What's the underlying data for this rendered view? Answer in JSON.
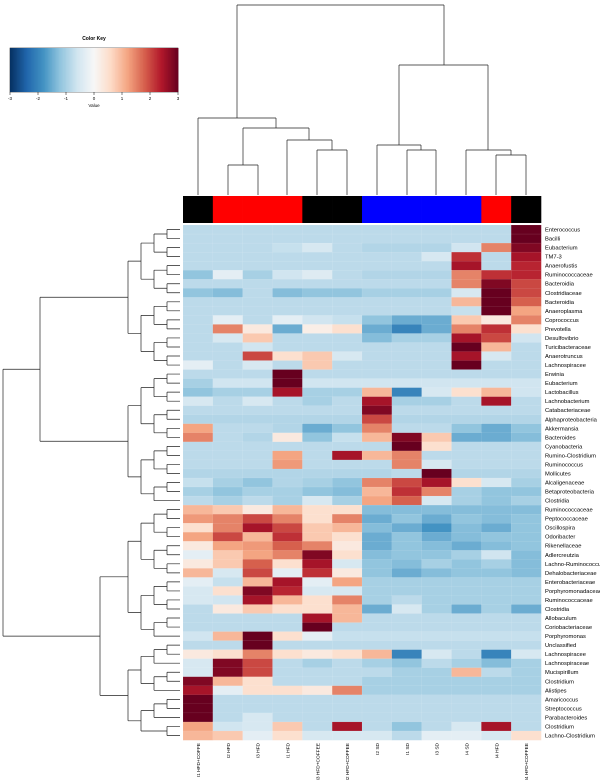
{
  "chart_data": {
    "type": "heatmap",
    "rows": [
      "Enterococcus",
      "Bacilli",
      "Eubacterium",
      "TM7-3",
      "Anaerofustis",
      "Ruminococcaceae",
      "Bacteroidia",
      "Clostridiaceae",
      "Bacteroidia",
      "Anaeroplasma",
      "Coprococcus",
      "Prevotella",
      "Desulfovibrio",
      "Turicibacteraceae",
      "Anaerotruncus",
      "Lachnospiracee",
      "Erwinia",
      "Eubacterium",
      "Lactobacillus",
      "Lachnobacterium",
      "Catabacteriaceae",
      "Alphaproteobacteria",
      "Akkermansia",
      "Bacteroides",
      "Cyanobacteria",
      "Rumino-Clostridium",
      "Ruminococcus",
      "Mollicutes",
      "Alcaligenaceae",
      "Betaproteobacteria",
      "Clostridia",
      "Ruminococcaceae",
      "Peptococcaceae",
      "Oscillospira",
      "Odoribacter",
      "Rikenellaceae",
      "Adlercreutzia",
      "Lachno-Ruminococcus",
      "Dehalobacteriaceae",
      "Enterobacteriaceae",
      "Porphyromonadaceae",
      "Ruminococcaceae",
      "Clostridia",
      "Allobaculum",
      "Coriobacteriaceae",
      "Porphyromonas",
      "Unclassified",
      "Lachnospiracee",
      "Lachnospiraceae",
      "Mucispirillum",
      "Clostridium",
      "Alistipes",
      "Amaricoccus",
      "Streptococcus",
      "Parabacteroides",
      "Clostridium",
      "Lachno-Clostridium"
    ],
    "columns": [
      "I1 HFD+COFFE",
      "I2 HFD",
      "I3 HFD",
      "I1 HFD",
      "I3 HFD+COFFEE",
      "I2 HFD+COFFEE",
      "I2 SD",
      "I1 SD",
      "I3 SD",
      "I4 SD",
      "I4 HFD",
      "I4 HFD+COFFEE"
    ],
    "column_colors": [
      "#000000",
      "#ff0000",
      "#ff0000",
      "#ff0000",
      "#000000",
      "#000000",
      "#0000ff",
      "#0000ff",
      "#0000ff",
      "#0000ff",
      "#ff0000",
      "#000000"
    ],
    "values": [
      [
        -0.8,
        -0.8,
        -0.8,
        -0.8,
        -0.8,
        -0.8,
        -0.8,
        -0.8,
        -0.8,
        -0.8,
        -0.8,
        3
      ],
      [
        -0.8,
        -0.8,
        -0.8,
        -0.8,
        -0.8,
        -0.8,
        -0.8,
        -0.8,
        -0.8,
        -0.8,
        -0.8,
        3
      ],
      [
        -0.8,
        -0.8,
        -0.8,
        -0.7,
        -0.5,
        -0.8,
        -0.9,
        -0.9,
        -0.9,
        -0.6,
        1.5,
        2.8
      ],
      [
        -0.8,
        -0.8,
        -0.8,
        -0.8,
        -0.8,
        -0.8,
        -0.8,
        -0.8,
        -0.5,
        2.2,
        -0.8,
        2.5
      ],
      [
        -0.8,
        -0.8,
        -0.8,
        -0.8,
        -0.8,
        -0.8,
        -0.8,
        -0.8,
        -0.8,
        2.5,
        -0.8,
        2.3
      ],
      [
        -1.2,
        -0.3,
        -1,
        -0.6,
        -0.4,
        -0.8,
        -0.9,
        -0.9,
        -0.9,
        1.5,
        2.2,
        2.3
      ],
      [
        -0.8,
        -0.8,
        -0.8,
        -0.8,
        -0.8,
        -0.8,
        -0.8,
        -0.8,
        -0.8,
        1.5,
        2.8,
        2
      ],
      [
        -1.2,
        -1.3,
        -0.8,
        -1.3,
        -1.2,
        -1.2,
        -1,
        -1,
        -1,
        -0.5,
        3,
        2
      ],
      [
        -0.8,
        -0.8,
        -0.8,
        -0.8,
        -0.8,
        -0.8,
        -0.8,
        -0.8,
        -0.8,
        1,
        3,
        1.8
      ],
      [
        -0.8,
        -0.8,
        -0.8,
        -0.8,
        -0.8,
        -0.8,
        -0.8,
        -0.8,
        -0.8,
        -0.7,
        3,
        1.2
      ],
      [
        -0.8,
        -0.3,
        -0.8,
        -0.3,
        -0.6,
        -0.7,
        -1.2,
        -1.5,
        -1.5,
        0.8,
        0.3,
        1.5
      ],
      [
        -0.8,
        1.5,
        0.3,
        -1.5,
        0.2,
        0.5,
        -1.5,
        -2,
        -1.5,
        1.5,
        2.2,
        0.5
      ],
      [
        -0.8,
        -0.5,
        0.8,
        -0.8,
        -0.8,
        -0.8,
        -1.3,
        -1,
        -1,
        2.5,
        2,
        -0.6
      ],
      [
        -0.8,
        -0.8,
        -0.6,
        -0.8,
        -0.8,
        -0.8,
        -0.8,
        -0.8,
        -0.8,
        3,
        1,
        -0.8
      ],
      [
        -0.8,
        -0.8,
        2,
        0.5,
        0.8,
        -0.5,
        -0.8,
        -0.8,
        -0.8,
        2.5,
        -0.5,
        -0.8
      ],
      [
        -0.3,
        -0.8,
        -0.5,
        -0.8,
        0.8,
        -0.8,
        -0.8,
        -0.8,
        -0.8,
        3,
        -0.8,
        -0.8
      ],
      [
        -0.8,
        -0.8,
        -0.8,
        3,
        -0.8,
        -0.8,
        -0.8,
        -0.8,
        -0.8,
        -0.8,
        -0.8,
        -0.8
      ],
      [
        -1,
        -0.6,
        -0.6,
        3,
        -0.6,
        -0.6,
        -0.6,
        -0.6,
        -0.6,
        -0.6,
        -0.6,
        -0.6
      ],
      [
        -1.2,
        -1,
        -1,
        2.5,
        -1,
        -1,
        1,
        -2,
        -0.5,
        0.5,
        1,
        -0.6
      ],
      [
        -0.5,
        -0.8,
        -0.5,
        -0.8,
        -1,
        -0.8,
        2.5,
        -1,
        -1,
        -0.8,
        2.5,
        -0.8
      ],
      [
        -0.8,
        -0.8,
        -0.8,
        -0.8,
        -0.8,
        -0.8,
        2.8,
        -0.8,
        -0.8,
        -0.8,
        -0.8,
        -0.8
      ],
      [
        -0.9,
        -0.9,
        -0.9,
        -0.9,
        -0.9,
        -0.9,
        2,
        -0.9,
        -0.9,
        -0.9,
        -0.9,
        -0.9
      ],
      [
        1.2,
        -0.8,
        -0.8,
        -0.9,
        -1.5,
        -1.2,
        1.5,
        -0.8,
        -0.8,
        -1.2,
        -1.5,
        -1.2
      ],
      [
        1.5,
        -0.8,
        -0.9,
        0.3,
        -1.2,
        -0.7,
        1,
        2.8,
        0.8,
        -1.5,
        -1.5,
        -1.3
      ],
      [
        -0.8,
        -0.8,
        -0.8,
        -0.8,
        -0.8,
        -0.8,
        -0.8,
        3,
        0.5,
        -0.8,
        -0.8,
        -0.8
      ],
      [
        -0.8,
        -0.8,
        -0.8,
        1.2,
        -0.8,
        2.5,
        1,
        1.5,
        -0.8,
        -0.8,
        -0.8,
        -0.8
      ],
      [
        -0.8,
        -0.8,
        -0.8,
        1.3,
        -0.8,
        -0.8,
        -0.8,
        1.5,
        -0.5,
        -0.8,
        -0.8,
        -0.8
      ],
      [
        -0.9,
        -0.9,
        -0.9,
        -0.9,
        -0.9,
        -0.9,
        -0.9,
        -0.8,
        3,
        -0.9,
        -0.9,
        -0.9
      ],
      [
        -0.7,
        -1,
        -1.2,
        -0.9,
        -1,
        -1.2,
        1.5,
        2,
        2.5,
        0.5,
        -0.5,
        -1
      ],
      [
        -1,
        -1.2,
        -1,
        -1,
        -1.2,
        -1.3,
        1,
        2.2,
        1.5,
        -1,
        -1.2,
        -1.2
      ],
      [
        -0.8,
        -1,
        -0.8,
        -1,
        -0.5,
        -1,
        1.2,
        1.8,
        -0.5,
        -1,
        -1.2,
        -1
      ],
      [
        1,
        0.8,
        0.3,
        1,
        0.5,
        0.5,
        -1.3,
        -1.3,
        -1.3,
        -1.3,
        -1.3,
        -1.3
      ],
      [
        1.3,
        1.5,
        2,
        1.5,
        0.5,
        1.5,
        -1.5,
        -1.2,
        -1.5,
        -1.2,
        -1.3,
        -1.2
      ],
      [
        0.5,
        1.5,
        2.5,
        2,
        0.8,
        1,
        -1.3,
        -1.5,
        -1.8,
        -1.3,
        -1.5,
        -1.2
      ],
      [
        1.2,
        2,
        1,
        2.2,
        0.8,
        0.5,
        -1.5,
        -1.2,
        -1.5,
        -1.3,
        -1.2,
        -1.2
      ],
      [
        0.3,
        1.2,
        1.3,
        1.8,
        1.5,
        0.3,
        -1.5,
        -1.2,
        -1.3,
        -1.5,
        -1.3,
        -1.2
      ],
      [
        -0.3,
        0.8,
        1.2,
        1.5,
        2.8,
        0.5,
        -1.3,
        -1.2,
        -1.2,
        -1,
        -0.6,
        -1.3
      ],
      [
        0.3,
        0.8,
        1.8,
        0.5,
        2.5,
        -0.5,
        -1.2,
        -1.3,
        -1,
        -1.2,
        -1,
        -1.3
      ],
      [
        1,
        -0.5,
        2,
        -0.3,
        2.2,
        0.3,
        -1.2,
        -1.5,
        -1.3,
        -1.2,
        -1.2,
        -1.3
      ],
      [
        -0.3,
        -0.7,
        1,
        2.5,
        -0.3,
        1.2,
        -1,
        -1,
        -1,
        -1,
        -1,
        -1
      ],
      [
        -0.5,
        0.5,
        2.8,
        2.3,
        -0.5,
        -0.5,
        -1,
        -1,
        -1,
        -1,
        -1,
        -1
      ],
      [
        -0.5,
        -0.6,
        2.5,
        1,
        0.5,
        1.5,
        -1,
        -0.8,
        -1,
        -1,
        -1,
        -1
      ],
      [
        -0.8,
        0.3,
        0.8,
        0.5,
        0.5,
        1,
        -1.5,
        -0.5,
        -1,
        -1.5,
        -1,
        -1.5
      ],
      [
        -0.8,
        -0.8,
        -0.8,
        -0.8,
        2.5,
        1,
        -0.8,
        -0.8,
        -0.8,
        -0.8,
        -0.8,
        -0.8
      ],
      [
        -0.8,
        -0.8,
        -0.8,
        -0.8,
        3,
        -0.8,
        -0.8,
        -0.8,
        -0.8,
        -0.8,
        -0.8,
        -0.8
      ],
      [
        -0.6,
        1,
        3,
        0.5,
        -0.3,
        -0.7,
        -0.7,
        -0.7,
        -0.7,
        -0.7,
        -0.7,
        -0.7
      ],
      [
        -0.8,
        -0.8,
        3,
        -0.8,
        -0.8,
        -0.8,
        -0.8,
        -0.8,
        -0.8,
        -0.8,
        -0.8,
        -0.8
      ],
      [
        0.3,
        0.5,
        1.5,
        0.5,
        0.3,
        0.5,
        1,
        -2,
        -0.5,
        -0.8,
        -2,
        -0.5
      ],
      [
        -0.5,
        2.8,
        2,
        -0.8,
        -1,
        -0.8,
        -1,
        -1.2,
        -0.8,
        -1,
        -1.3,
        -1
      ],
      [
        -0.5,
        2.8,
        2,
        -0.8,
        -0.8,
        -0.8,
        -0.8,
        -1,
        -1,
        1,
        -0.8,
        -1
      ],
      [
        2.8,
        1,
        0.5,
        -0.8,
        -0.8,
        -0.8,
        -1,
        -1,
        -1,
        -1,
        -1,
        -1
      ],
      [
        2.5,
        -0.3,
        0.5,
        0.5,
        0.3,
        1.5,
        -1,
        -1,
        -1,
        -1,
        -1,
        -1
      ],
      [
        3,
        -0.8,
        -0.8,
        -0.8,
        -0.8,
        -0.8,
        -0.8,
        -0.8,
        -0.8,
        -0.8,
        -0.8,
        -0.8
      ],
      [
        3,
        -0.8,
        -0.8,
        -0.8,
        -0.8,
        -0.8,
        -0.8,
        -0.8,
        -0.8,
        -0.8,
        -0.8,
        -0.8
      ],
      [
        3,
        -0.8,
        -0.5,
        -0.8,
        -0.8,
        -0.8,
        -0.8,
        -0.8,
        -0.8,
        -0.8,
        -0.8,
        -0.8
      ],
      [
        1.2,
        -0.6,
        -0.5,
        0.8,
        -0.8,
        2.5,
        -0.8,
        -1.2,
        -0.8,
        -0.5,
        2.5,
        -0.8
      ],
      [
        1,
        0.8,
        -0.3,
        0.5,
        -0.5,
        -0.5,
        -0.5,
        -0.8,
        -0.3,
        -0.3,
        -0.5,
        0.5
      ]
    ],
    "colorscale": [
      "#053061",
      "#2166ac",
      "#4393c3",
      "#92c5de",
      "#d1e5f0",
      "#f7f7f7",
      "#fddbc7",
      "#f4a582",
      "#d6604d",
      "#b2182b",
      "#67001f"
    ],
    "color_key": {
      "title": "Color Key",
      "xlabel": "Value",
      "xlim": [
        -3,
        3
      ],
      "xticks": [
        -3,
        -2,
        -1,
        0,
        1,
        2,
        3
      ]
    }
  }
}
